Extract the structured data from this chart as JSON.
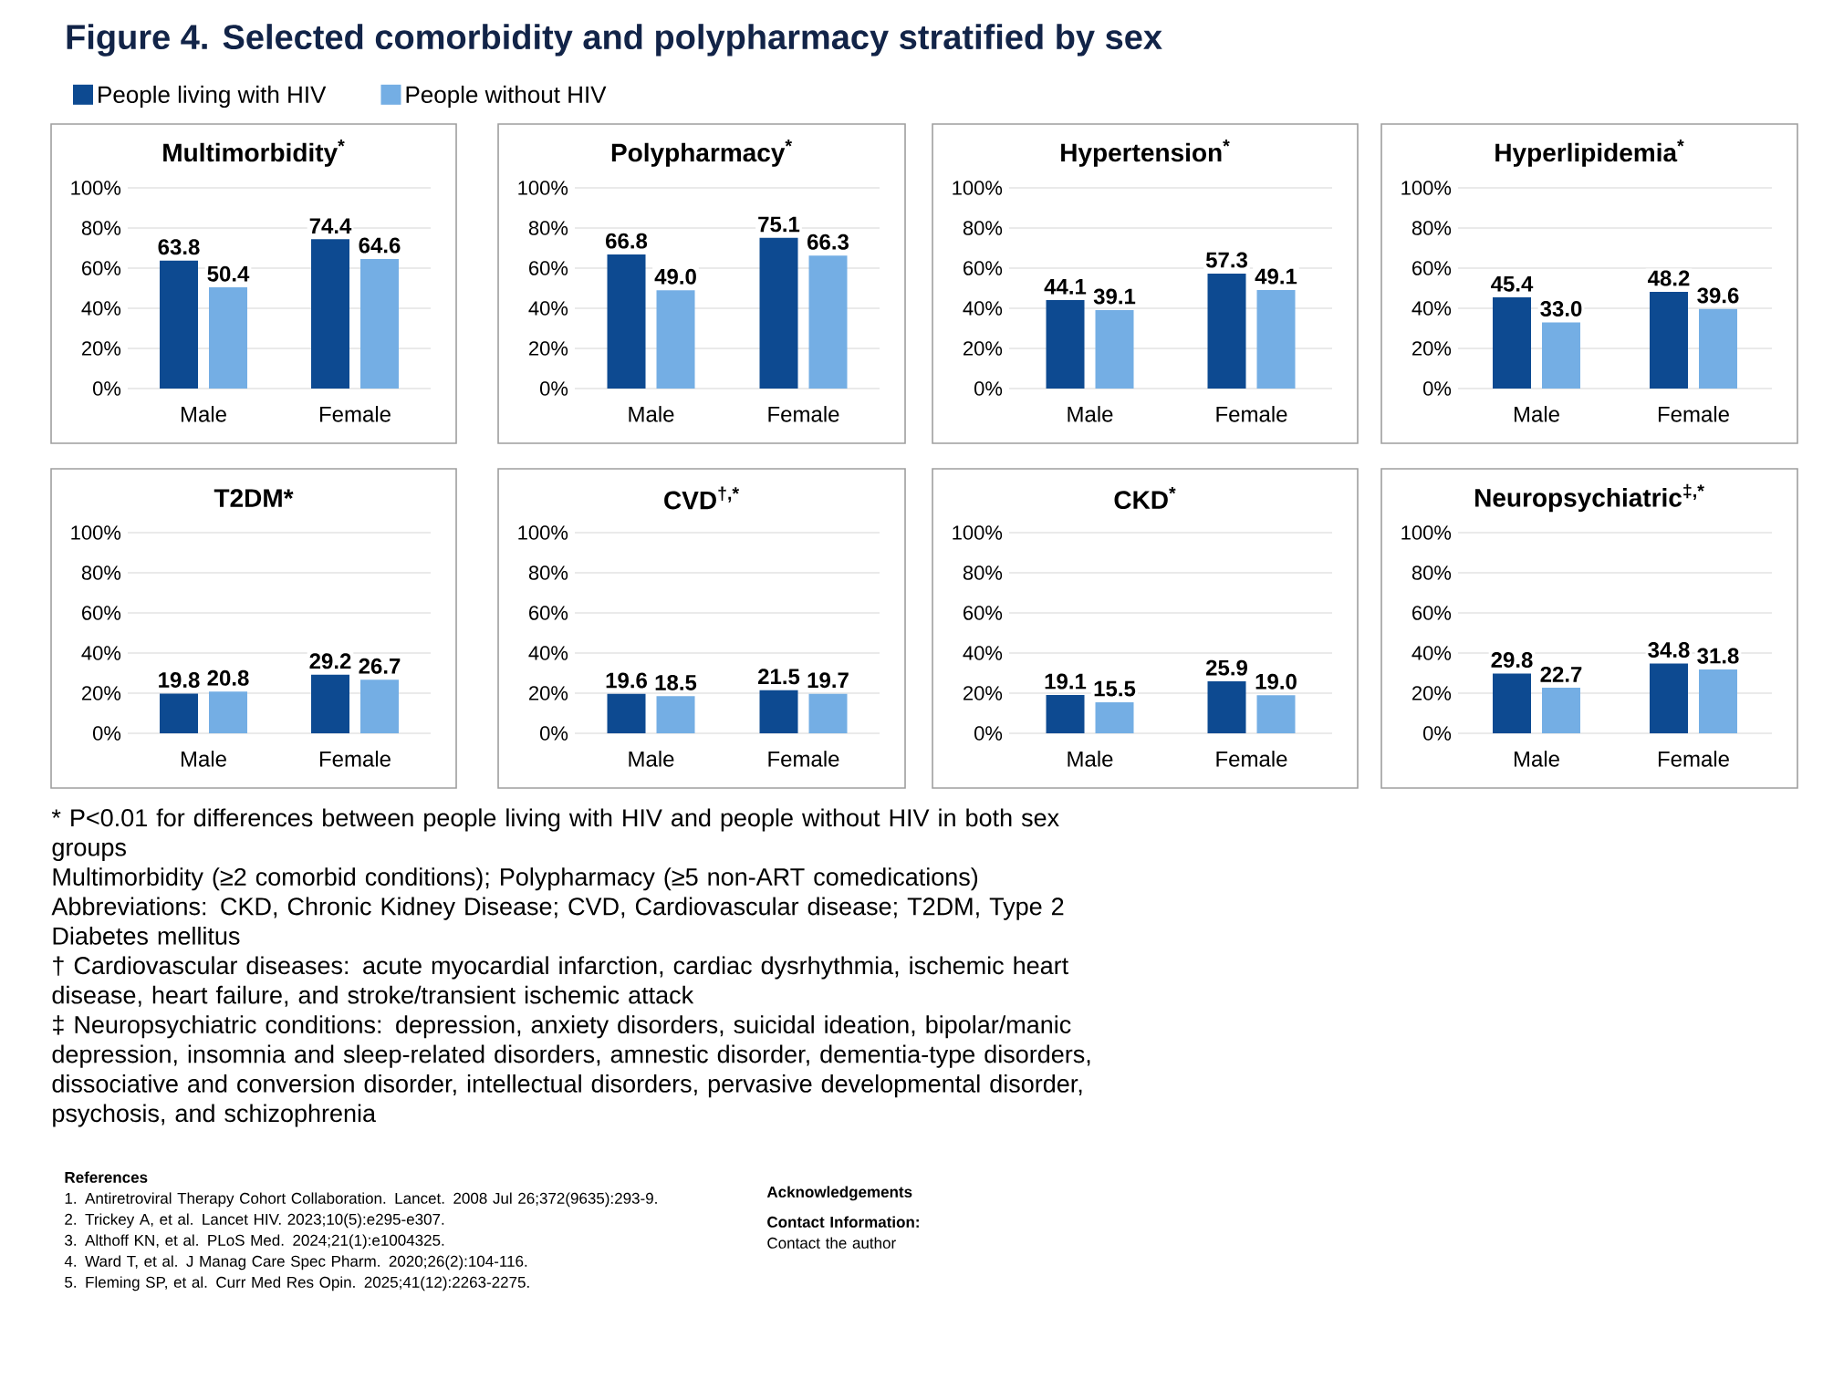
{
  "chart_data": [
    {
      "type": "bar",
      "title": "Multimorbidity$^{*}$",
      "categories": [
        "Male",
        "Female"
      ],
      "legend": "top",
      "grid": "y",
      "ylim": [
        0,
        100
      ],
      "yticks": [
        {
          "value": 0,
          "label": "0%"
        },
        {
          "value": 20,
          "label": "20%"
        },
        {
          "value": 40,
          "label": "40%"
        },
        {
          "value": 60,
          "label": "60%"
        },
        {
          "value": 80,
          "label": "80%"
        },
        {
          "value": 100,
          "label": "100%"
        }
      ],
      "series": [
        {
          "name": "People living with HIV",
          "color": "#0d4a91",
          "values": [
            63.8,
            74.4
          ],
          "value_labels": [
            "63.8",
            "74.4"
          ]
        },
        {
          "name": "People without HIV",
          "color": "#74aee4",
          "values": [
            50.4,
            64.6
          ],
          "value_labels": [
            "50.4",
            "64.6"
          ]
        }
      ]
    },
    {
      "type": "bar",
      "title": "Polypharmacy$^{*}$",
      "categories": [
        "Male",
        "Female"
      ],
      "grid": "y",
      "ylim": [
        0,
        100
      ],
      "yticks": [
        {
          "value": 0,
          "label": "0%"
        },
        {
          "value": 20,
          "label": "20%"
        },
        {
          "value": 40,
          "label": "40%"
        },
        {
          "value": 60,
          "label": "60%"
        },
        {
          "value": 80,
          "label": "80%"
        },
        {
          "value": 100,
          "label": "100%"
        }
      ],
      "series": [
        {
          "color": "#0d4a91",
          "values": [
            66.8,
            75.1
          ],
          "value_labels": [
            "66.8",
            "75.1"
          ]
        },
        {
          "color": "#74aee4",
          "values": [
            49.0,
            66.3
          ],
          "value_labels": [
            "49.0",
            "66.3"
          ]
        }
      ]
    },
    {
      "type": "bar",
      "title": "Hypertension$^{*}$",
      "categories": [
        "Male",
        "Female"
      ],
      "grid": "y",
      "ylim": [
        0,
        100
      ],
      "yticks": [
        {
          "value": 0,
          "label": "0%"
        },
        {
          "value": 20,
          "label": "20%"
        },
        {
          "value": 40,
          "label": "40%"
        },
        {
          "value": 60,
          "label": "60%"
        },
        {
          "value": 80,
          "label": "80%"
        },
        {
          "value": 100,
          "label": "100%"
        }
      ],
      "series": [
        {
          "color": "#0d4a91",
          "values": [
            44.1,
            57.3
          ],
          "value_labels": [
            "44.1",
            "57.3"
          ]
        },
        {
          "color": "#74aee4",
          "values": [
            39.1,
            49.1
          ],
          "value_labels": [
            "39.1",
            "49.1"
          ]
        }
      ]
    },
    {
      "type": "bar",
      "title": "Hyperlipidemia$^{*}$",
      "categories": [
        "Male",
        "Female"
      ],
      "grid": "y",
      "ylim": [
        0,
        100
      ],
      "yticks": [
        {
          "value": 0,
          "label": "0%"
        },
        {
          "value": 20,
          "label": "20%"
        },
        {
          "value": 40,
          "label": "40%"
        },
        {
          "value": 60,
          "label": "60%"
        },
        {
          "value": 80,
          "label": "80%"
        },
        {
          "value": 100,
          "label": "100%"
        }
      ],
      "series": [
        {
          "color": "#0d4a91",
          "values": [
            45.4,
            48.2
          ],
          "value_labels": [
            "45.4",
            "48.2"
          ]
        },
        {
          "color": "#74aee4",
          "values": [
            33.0,
            39.6
          ],
          "value_labels": [
            "33.0",
            "39.6"
          ]
        }
      ]
    },
    {
      "type": "bar",
      "title": "T2DM*",
      "categories": [
        "Male",
        "Female"
      ],
      "grid": "y",
      "ylim": [
        0,
        100
      ],
      "yticks": [
        {
          "value": 0,
          "label": "0%"
        },
        {
          "value": 20,
          "label": "20%"
        },
        {
          "value": 40,
          "label": "40%"
        },
        {
          "value": 60,
          "label": "60%"
        },
        {
          "value": 80,
          "label": "80%"
        },
        {
          "value": 100,
          "label": "100%"
        }
      ],
      "series": [
        {
          "color": "#0d4a91",
          "values": [
            19.8,
            29.2
          ],
          "value_labels": [
            "19.8",
            "29.2"
          ]
        },
        {
          "color": "#74aee4",
          "values": [
            20.8,
            26.7
          ],
          "value_labels": [
            "20.8",
            "26.7"
          ]
        }
      ]
    },
    {
      "type": "bar",
      "title": "CVD$^{†,*}$",
      "categories": [
        "Male",
        "Female"
      ],
      "grid": "y",
      "ylim": [
        0,
        100
      ],
      "yticks": [
        {
          "value": 0,
          "label": "0%"
        },
        {
          "value": 20,
          "label": "20%"
        },
        {
          "value": 40,
          "label": "40%"
        },
        {
          "value": 60,
          "label": "60%"
        },
        {
          "value": 80,
          "label": "80%"
        },
        {
          "value": 100,
          "label": "100%"
        }
      ],
      "series": [
        {
          "color": "#0d4a91",
          "values": [
            19.6,
            21.5
          ],
          "value_labels": [
            "19.6",
            "21.5"
          ]
        },
        {
          "color": "#74aee4",
          "values": [
            18.5,
            19.7
          ],
          "value_labels": [
            "18.5",
            "19.7"
          ]
        }
      ]
    },
    {
      "type": "bar",
      "title": "CKD$^{*}$",
      "categories": [
        "Male",
        "Female"
      ],
      "grid": "y",
      "ylim": [
        0,
        100
      ],
      "yticks": [
        {
          "value": 0,
          "label": "0%"
        },
        {
          "value": 20,
          "label": "20%"
        },
        {
          "value": 40,
          "label": "40%"
        },
        {
          "value": 60,
          "label": "60%"
        },
        {
          "value": 80,
          "label": "80%"
        },
        {
          "value": 100,
          "label": "100%"
        }
      ],
      "series": [
        {
          "color": "#0d4a91",
          "values": [
            19.1,
            25.9
          ],
          "value_labels": [
            "19.1",
            "25.9"
          ]
        },
        {
          "color": "#74aee4",
          "values": [
            15.5,
            19.0
          ],
          "value_labels": [
            "15.5",
            "19.0"
          ]
        }
      ]
    },
    {
      "type": "bar",
      "title": "Neuropsychiatric$^{‡,*}$",
      "categories": [
        "Male",
        "Female"
      ],
      "grid": "y",
      "ylim": [
        0,
        100
      ],
      "yticks": [
        {
          "value": 0,
          "label": "0%"
        },
        {
          "value": 20,
          "label": "20%"
        },
        {
          "value": 40,
          "label": "40%"
        },
        {
          "value": 60,
          "label": "60%"
        },
        {
          "value": 80,
          "label": "80%"
        },
        {
          "value": 100,
          "label": "100%"
        }
      ],
      "series": [
        {
          "color": "#0d4a91",
          "values": [
            29.8,
            34.8
          ],
          "value_labels": [
            "29.8",
            "34.8"
          ]
        },
        {
          "color": "#74aee4",
          "values": [
            22.7,
            31.8
          ],
          "value_labels": [
            "22.7",
            "31.8"
          ]
        }
      ]
    },
    {
      "type": "other",
      "title": "Figure 4. Selected comorbidity and polypharmacy stratified by sex",
      "annotations": [
        "* P<0.01 for differences between people living with HIV and people without HIV in both sex groups",
        "Multimorbidity (≥2 comorbid conditions); Polypharmacy (≥5 non-ART comedications)",
        "Abbreviations: CKD, Chronic Kidney Disease; CVD, Cardiovascular disease; T2DM, Type 2 Diabetes mellitus",
        "† Cardiovascular diseases: acute myocardial infarction, cardiac dysrhythmia, ischemic heart disease, heart failure, and stroke/transient ischemic attack",
        "‡ Neuropsychiatric conditions: depression, anxiety disorders, suicidal ideation, bipolar/manic depression, insomnia and sleep-related disorders, amnestic disorder, dementia-type disorders, dissociative and conversion disorder, intellectual disorders, pervasive developmental disorder, psychosis, and schizophrenia",
        "References",
        "1. Antiretroviral Therapy Cohort Collaboration. Lancet. 2008 Jul 26;372(9635):293-9.",
        "2. Trickey A, et al. Lancet HIV. 2023;10(5):e295-e307.",
        "3. Althoff KN, et al. PLoS Med. 2024;21(1):e1004325.",
        "4. Ward T, et al. J Manag Care Spec Pharm. 2020;26(2):104-116.",
        "5. Fleming SP, et al. Curr Med Res Opin. 2025;41(12):2263-2275.",
        "Acknowledgements",
        "Contact Information:",
        "Contact the author"
      ]
    }
  ]
}
